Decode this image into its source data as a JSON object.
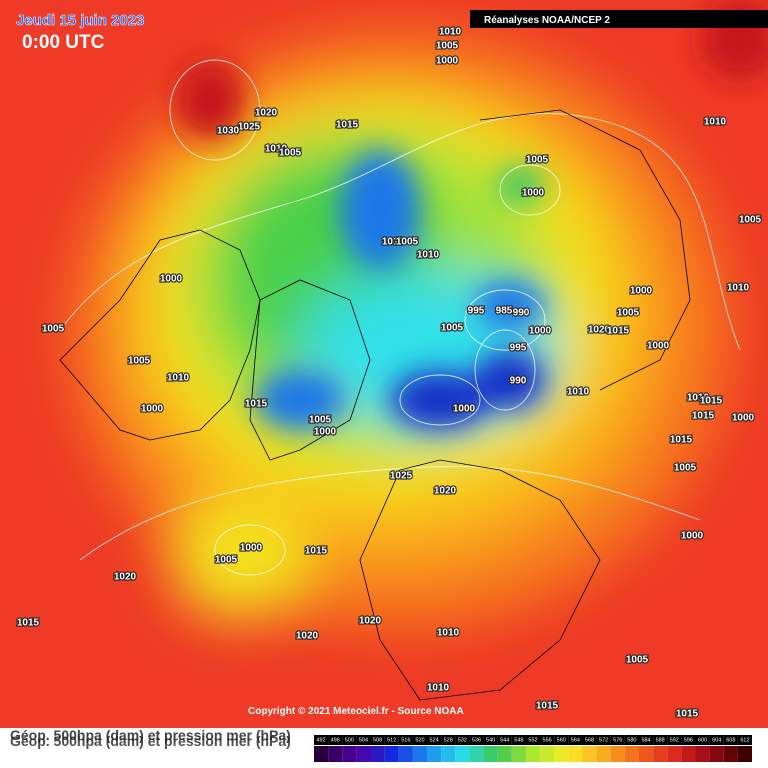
{
  "header": {
    "date": "Jeudi 15 juin 2023",
    "time": "0:00 UTC",
    "source": "Réanalyses NOAA/NCEP 2"
  },
  "footer": {
    "copyright": "Copyright © 2021 Meteociel.fr - Source NOAA",
    "legend_title": "Géop. 500hpa (dam) et pression mer (hPa)",
    "legend_title_repeat": "Géop. 500hpa (dam) et pression mer (hPa)"
  },
  "scale": [
    492,
    496,
    500,
    504,
    508,
    512,
    516,
    520,
    524,
    528,
    532,
    536,
    540,
    544,
    548,
    552,
    556,
    560,
    564,
    568,
    572,
    576,
    580,
    584,
    588,
    592,
    596,
    600,
    604,
    608,
    612
  ],
  "isobars": [
    1010,
    1005,
    1000,
    1020,
    1025,
    1030,
    1015,
    1010,
    1005,
    1005,
    1000,
    1010,
    1005,
    1010,
    1005,
    1010,
    1000,
    1005,
    1005,
    1010,
    1000,
    1015,
    1005,
    1000,
    995,
    985,
    990,
    1000,
    1005,
    995,
    990,
    1000,
    1010,
    1020,
    1015,
    1005,
    1000,
    1000,
    1010,
    1010,
    1015,
    1015,
    1000,
    1015,
    1005,
    1025,
    1020,
    1000,
    1005,
    1015,
    1020,
    1015,
    1020,
    1020,
    1010,
    1000,
    1005,
    1010,
    1015,
    1015
  ]
}
